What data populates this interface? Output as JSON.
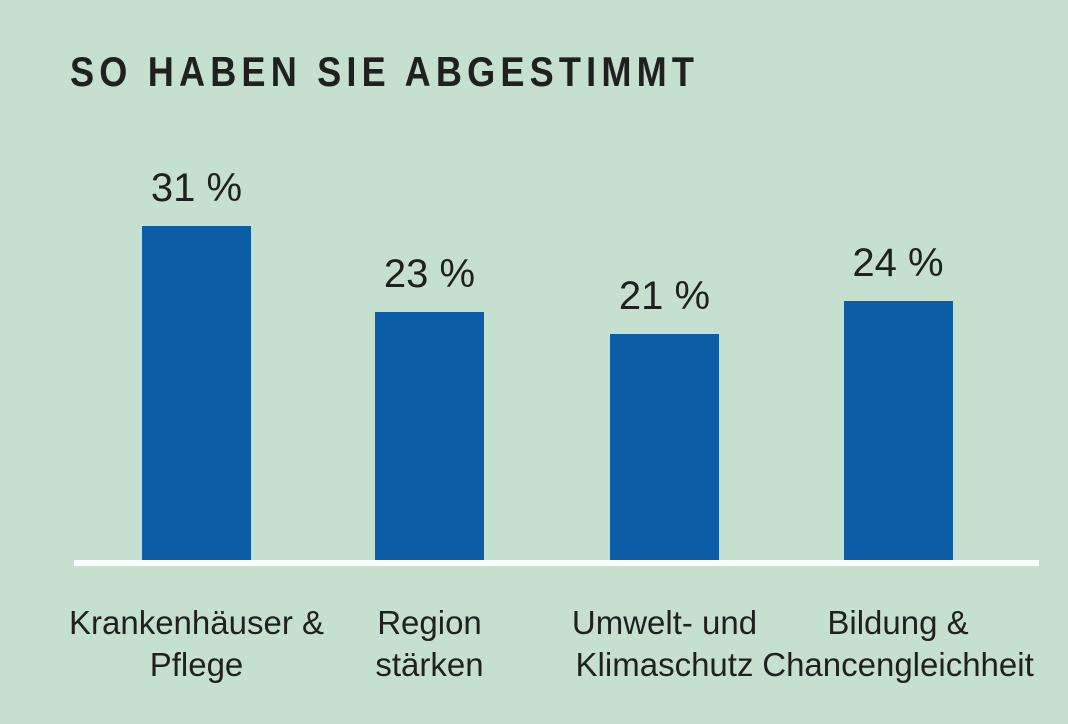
{
  "title": "SO HABEN SIE ABGESTIMMT",
  "colors": {
    "background": "#c6e0d0",
    "bar": "#0b5da8",
    "text": "#1f211e",
    "baseline": "#ffffff"
  },
  "chart_data": {
    "type": "bar",
    "title": "SO HABEN SIE ABGESTIMMT",
    "categories": [
      "Krankenhäuser & Pflege",
      "Region stärken",
      "Umwelt- und Klimaschutz",
      "Bildung & Chancengleichheit"
    ],
    "category_lines": [
      [
        "Krankenhäuser &",
        "Pflege"
      ],
      [
        "Region",
        "stärken"
      ],
      [
        "Umwelt- und",
        "Klimaschutz"
      ],
      [
        "Bildung &",
        "Chancengleichheit"
      ]
    ],
    "values": [
      31,
      23,
      21,
      24
    ],
    "value_labels": [
      "31 %",
      "23 %",
      "21 %",
      "24 %"
    ],
    "unit": "%",
    "xlabel": "",
    "ylabel": "",
    "ylim": [
      0,
      35
    ],
    "grid": false,
    "legend": null,
    "axis": "baseline-only"
  }
}
